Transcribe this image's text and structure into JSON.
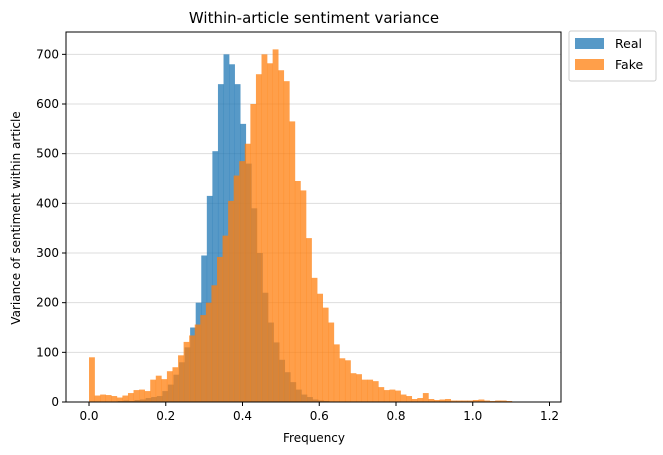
{
  "chart_data": {
    "type": "bar",
    "title": "Within-article sentiment variance",
    "xlabel": "Frequency",
    "ylabel": "Variance of sentiment within article",
    "xlim": [
      -0.06,
      1.23
    ],
    "ylim": [
      0,
      745
    ],
    "x_ticks": [
      0.0,
      0.2,
      0.4,
      0.6,
      0.8,
      1.0,
      1.2
    ],
    "x_tick_labels": [
      "0.0",
      "0.2",
      "0.4",
      "0.6",
      "0.8",
      "1.0",
      "1.2"
    ],
    "y_ticks": [
      0,
      100,
      200,
      300,
      400,
      500,
      600,
      700
    ],
    "y_tick_labels": [
      "0",
      "100",
      "200",
      "300",
      "400",
      "500",
      "600",
      "700"
    ],
    "grid": "horizontal",
    "legend_position": "outside-top-right",
    "bin_width": 0.0145,
    "series": [
      {
        "name": "Real",
        "color": "#1f77b4",
        "opacity": 0.75,
        "bin_start": 0.075,
        "values": [
          2,
          3,
          2,
          4,
          5,
          8,
          10,
          12,
          22,
          35,
          55,
          80,
          110,
          150,
          200,
          295,
          415,
          505,
          640,
          700,
          680,
          640,
          560,
          480,
          390,
          300,
          220,
          160,
          120,
          85,
          60,
          40,
          25,
          15,
          10,
          5,
          3,
          2
        ]
      },
      {
        "name": "Fake",
        "color": "#ff7f0e",
        "opacity": 0.75,
        "bin_start": 0.0,
        "values": [
          90,
          13,
          15,
          14,
          12,
          9,
          13,
          18,
          24,
          25,
          22,
          45,
          53,
          46,
          62,
          70,
          94,
          121,
          134,
          156,
          175,
          200,
          235,
          292,
          335,
          405,
          456,
          485,
          520,
          600,
          660,
          700,
          682,
          710,
          668,
          646,
          565,
          445,
          426,
          330,
          250,
          218,
          190,
          160,
          116,
          88,
          84,
          58,
          56,
          45,
          45,
          42,
          30,
          24,
          25,
          23,
          15,
          12,
          6,
          8,
          18,
          6,
          4,
          5,
          6,
          3,
          3,
          3,
          3,
          4,
          5,
          3,
          2,
          3,
          3,
          2,
          1,
          1,
          1,
          1,
          1,
          1,
          1,
          0,
          0,
          0,
          0,
          0,
          0,
          0,
          0,
          0,
          0,
          0,
          0,
          0,
          0,
          0,
          0,
          0,
          0,
          0,
          0,
          0,
          0,
          0,
          0,
          0,
          0,
          0,
          0,
          0,
          0,
          0,
          0,
          1
        ]
      }
    ]
  }
}
